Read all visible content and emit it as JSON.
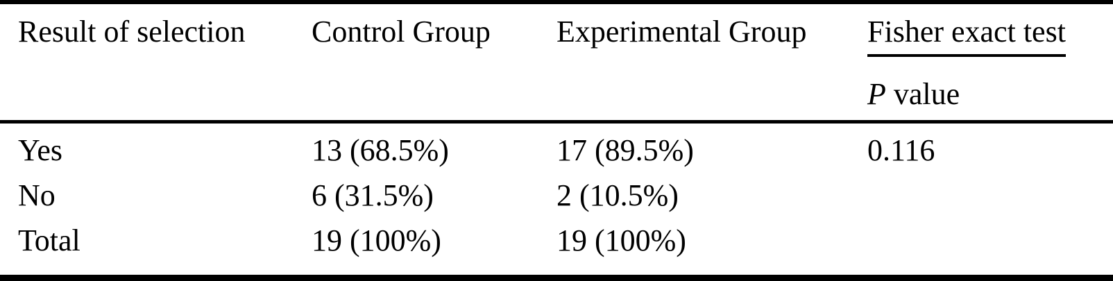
{
  "table": {
    "columns": [
      "Result of selection",
      "Control Group",
      "Experimental Group",
      "Fisher exact test"
    ],
    "subheader": {
      "p_italic": "P",
      "p_rest": " value"
    },
    "rows": [
      {
        "result": "Yes",
        "control": "13 (68.5%)",
        "experimental": "17 (89.5%)",
        "p_value": "0.116"
      },
      {
        "result": "No",
        "control": "6 (31.5%)",
        "experimental": "2 (10.5%)",
        "p_value": ""
      },
      {
        "result": "Total",
        "control": "19 (100%)",
        "experimental": "19 (100%)",
        "p_value": ""
      }
    ],
    "colors": {
      "text": "#000000",
      "background": "#ffffff",
      "rule": "#000000"
    }
  },
  "chart_data": {
    "type": "table",
    "columns": [
      "Result of selection",
      "Control Group",
      "Experimental Group",
      "Fisher exact test P value"
    ],
    "rows": [
      [
        "Yes",
        "13 (68.5%)",
        "17 (89.5%)",
        "0.116"
      ],
      [
        "No",
        "6 (31.5%)",
        "2 (10.5%)",
        ""
      ],
      [
        "Total",
        "19 (100%)",
        "19 (100%)",
        ""
      ]
    ]
  }
}
